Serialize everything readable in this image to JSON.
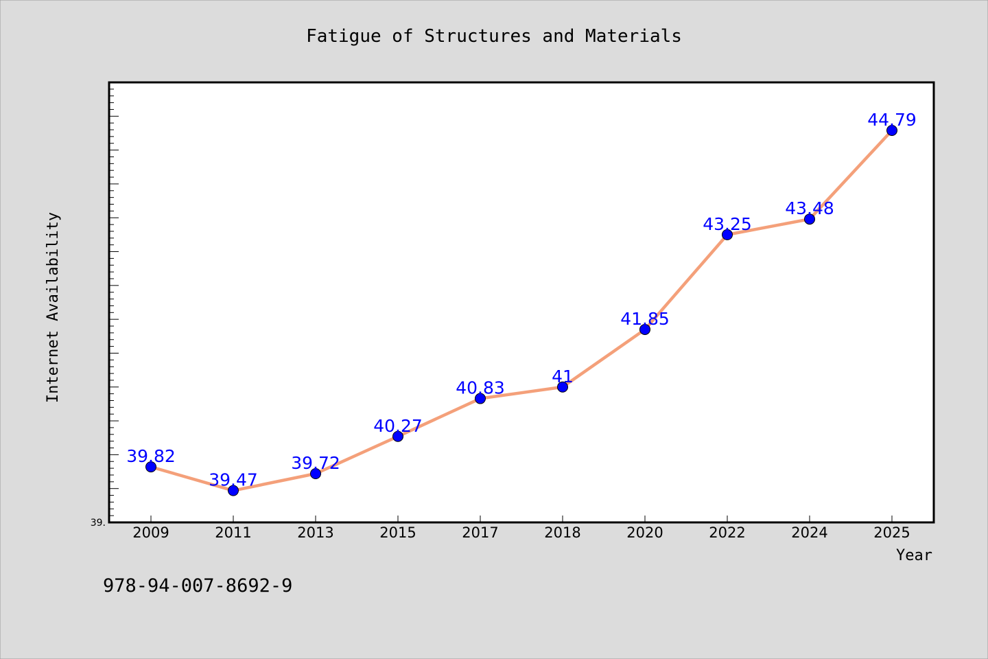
{
  "colors": {
    "background": "#dcdcdc",
    "plot_background": "#ffffff",
    "line": "#f4a07a",
    "marker": "#0000ff",
    "data_label": "#0000ff"
  },
  "chart_data": {
    "type": "line",
    "title": "Fatigue of Structures and Materials",
    "xlabel": "Year",
    "ylabel": "Internet Availability",
    "categories": [
      "2009",
      "2011",
      "2013",
      "2015",
      "2017",
      "2018",
      "2020",
      "2022",
      "2024",
      "2025"
    ],
    "series": [
      {
        "values": [
          39.82,
          39.47,
          39.72,
          40.27,
          40.83,
          41,
          41.85,
          43.25,
          43.48,
          44.79
        ],
        "labels": [
          "39.82",
          "39.47",
          "39.72",
          "40.27",
          "40.83",
          "41",
          "41.85",
          "43.25",
          "43.48",
          "44.79"
        ]
      }
    ],
    "ylim": [
      39,
      45.5
    ],
    "ytick_labels": [
      "39."
    ],
    "grid": false
  },
  "footer": {
    "isbn": "978-94-007-8692-9"
  }
}
